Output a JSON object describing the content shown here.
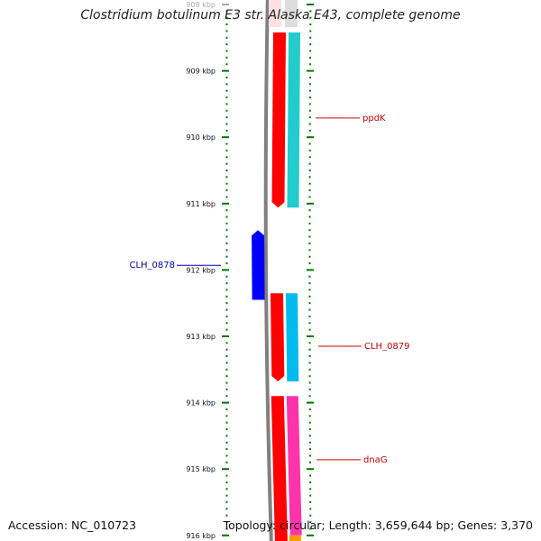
{
  "title": "Clostridium botulinum E3 str. Alaska E43, complete genome",
  "footer": {
    "accession": "Accession: NC_010723",
    "topology": "Topology: circular; Length: 3,659,644 bp; Genes: 3,370"
  },
  "colors": {
    "backbone": "#808080",
    "tick": "#007700",
    "label_red": "#cc0000",
    "label_blue": "#0000aa"
  },
  "scale": {
    "ticks": [
      {
        "label": "908 kbp"
      },
      {
        "label": "909 kbp"
      },
      {
        "label": "910 kbp"
      },
      {
        "label": "911 kbp"
      },
      {
        "label": "912 kbp"
      },
      {
        "label": "913 kbp"
      },
      {
        "label": "914 kbp"
      },
      {
        "label": "915 kbp"
      },
      {
        "label": "916 kbp"
      }
    ]
  },
  "genes": [
    {
      "name": "ppdK",
      "strand": "minus",
      "color": "#ff0000",
      "start_kbp": 908.0,
      "end_kbp": 911.06
    },
    {
      "name": "CLH_0878",
      "strand": "plus",
      "color": "#0000ff",
      "start_kbp": 911.4,
      "end_kbp": 912.45
    },
    {
      "name": "CLH_0879",
      "strand": "minus",
      "color": "#ff0000",
      "start_kbp": 912.35,
      "end_kbp": 913.68
    },
    {
      "name": "dnaG",
      "strand": "minus",
      "color": "#ff0000",
      "start_kbp": 913.9,
      "end_kbp": 916.1
    }
  ],
  "cog_bars": [
    {
      "gene": "ppdK",
      "color": "#22cccc",
      "start_kbp": 908.0,
      "end_kbp": 911.06
    },
    {
      "gene": "CLH_0879",
      "color": "#00bbee",
      "start_kbp": 912.35,
      "end_kbp": 913.68
    },
    {
      "gene": "dnaG",
      "color": "#ff33aa",
      "start_kbp": 913.9,
      "end_kbp": 916.0
    },
    {
      "gene": "",
      "color": "#ff9900",
      "start_kbp": 916.0,
      "end_kbp": 916.1
    }
  ]
}
